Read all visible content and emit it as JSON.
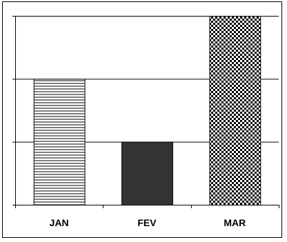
{
  "chart_data": {
    "type": "bar",
    "categories": [
      "JAN",
      "FEV",
      "MAR"
    ],
    "values": [
      2,
      1,
      3
    ],
    "ylim": [
      0,
      3
    ],
    "title": "",
    "xlabel": "",
    "ylabel": "",
    "grid": true,
    "series_patterns": [
      "horizontal-lines",
      "solid-dark",
      "checkerboard"
    ],
    "colors": {
      "dark_bar": "#333333",
      "line": "#000000",
      "background": "#ffffff"
    }
  }
}
